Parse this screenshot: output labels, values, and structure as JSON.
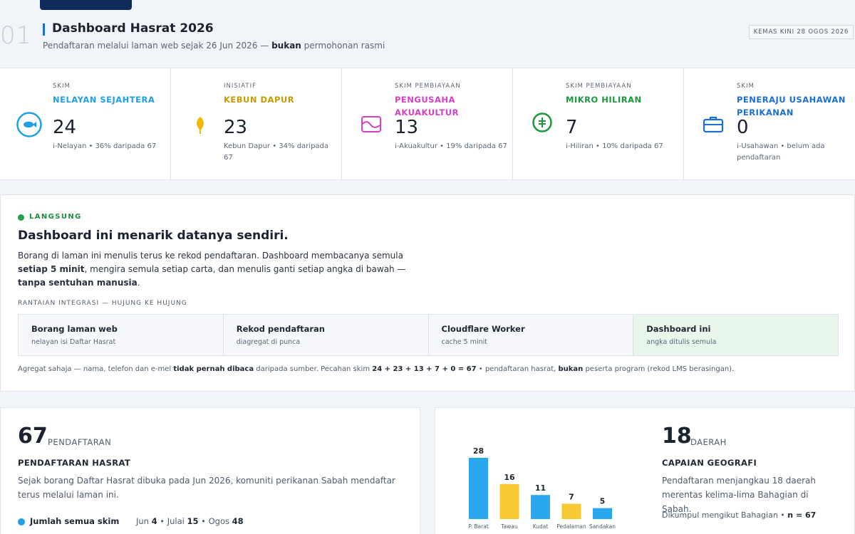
{
  "header": {
    "section_number": "01",
    "title": "Dashboard Hasrat 2026",
    "subtitle_prefix": "Pendaftaran melalui laman web sejak 26 Jun 2026 — ",
    "subtitle_bold": "bukan",
    "subtitle_suffix": " permohonan rasmi",
    "updated": "KEMAS KINI 28 OGOS 2026"
  },
  "stats": [
    {
      "kicker": "SKIM",
      "name": "NELAYAN SEJAHTERA",
      "value": "24",
      "note": "i-Nelayan • 36% daripada 67",
      "color": "#1ea0e8",
      "icon": "fish-icon"
    },
    {
      "kicker": "INISIATIF",
      "name": "KEBUN DAPUR",
      "value": "23",
      "note": "Kebun Dapur • 34% daripada 67",
      "color": "#c49a06",
      "icon": "leaf-icon"
    },
    {
      "kicker": "SKIM PEMBIAYAAN",
      "name": "PENGUSAHA AKUAKULTUR",
      "value": "13",
      "note": "i-Akuakultur • 19% daripada 67",
      "color": "#d63fc3",
      "icon": "wave-icon"
    },
    {
      "kicker": "SKIM PEMBIAYAAN",
      "name": "MIKRO HILIRAN",
      "value": "7",
      "note": "i-Hiliran • 10% daripada 67",
      "color": "#1e9640",
      "icon": "currency-icon"
    },
    {
      "kicker": "SKIM",
      "name": "PENERAJU USAHAWAN PERIKANAN",
      "value": "0",
      "note": "i-Usahawan • belum ada pendaftaran",
      "color": "#1c6fd1",
      "icon": "briefcase-icon"
    }
  ],
  "live": {
    "label": "LANGSUNG",
    "title": "Dashboard ini menarik datanya sendiri.",
    "body_1": "Borang di laman ini menulis terus ke rekod pendaftaran. Dashboard membacanya semula ",
    "body_2": "setiap 5 minit",
    "body_3": ", mengira semula setiap carta, dan menulis ganti setiap angka di bawah — ",
    "body_4": "tanpa sentuhan manusia",
    "body_5": ".",
    "chain_label": "RANTAIAN INTEGRASI — HUJUNG KE HUJUNG",
    "chain": [
      {
        "title": "Borang laman web",
        "sub": "nelayan isi Daftar Hasrat"
      },
      {
        "title": "Rekod pendaftaran",
        "sub": "diagregat di punca"
      },
      {
        "title": "Cloudflare Worker",
        "sub": "cache 5 minit"
      },
      {
        "title": "Dashboard ini",
        "sub": "angka ditulis semula"
      }
    ],
    "foot_1": "Agregat sahaja — nama, telefon dan e-mel ",
    "foot_2": "tidak pernah dibaca",
    "foot_3": " daripada sumber. Pecahan skim ",
    "foot_4": "24 + 23 + 13 + 7 + 0 = 67",
    "foot_5": " • pendaftaran hasrat, ",
    "foot_6": "bukan",
    "foot_7": " peserta program (rekod LMS berasingan)."
  },
  "registrations": {
    "number": "67",
    "unit": "PENDAFTARAN",
    "heading": "PENDAFTARAN HASRAT",
    "text": "Sejak borang Daftar Hasrat dibuka pada Jun 2026, komuniti perikanan Sabah mendaftar terus melalui laman ini.",
    "legend": "Jumlah semua skim",
    "m1_label": "Jun ",
    "m1_value": "4",
    "m2_label": " • Julai ",
    "m2_value": "15",
    "m3_label": " • Ogos ",
    "m3_value": "48"
  },
  "geography": {
    "number": "18",
    "unit": "DAERAH",
    "heading": "CAPAIAN GEOGRAFI",
    "text": "Pendaftaran menjangkau 18 daerah merentas kelima-lima Bahagian di Sabah.",
    "note_prefix": "Dikumpul mengikut Bahagian • ",
    "note_bold": "n = 67"
  },
  "chart_data": {
    "type": "bar",
    "categories": [
      "P. Barat",
      "Tawau",
      "Kudat",
      "Pedalaman",
      "Sandakan"
    ],
    "values": [
      28,
      16,
      11,
      7,
      5
    ],
    "colors": [
      "#2ba7ef",
      "#f7c932",
      "#2ba7ef",
      "#f7c932",
      "#2ba7ef"
    ],
    "ylim": [
      0,
      28
    ]
  }
}
